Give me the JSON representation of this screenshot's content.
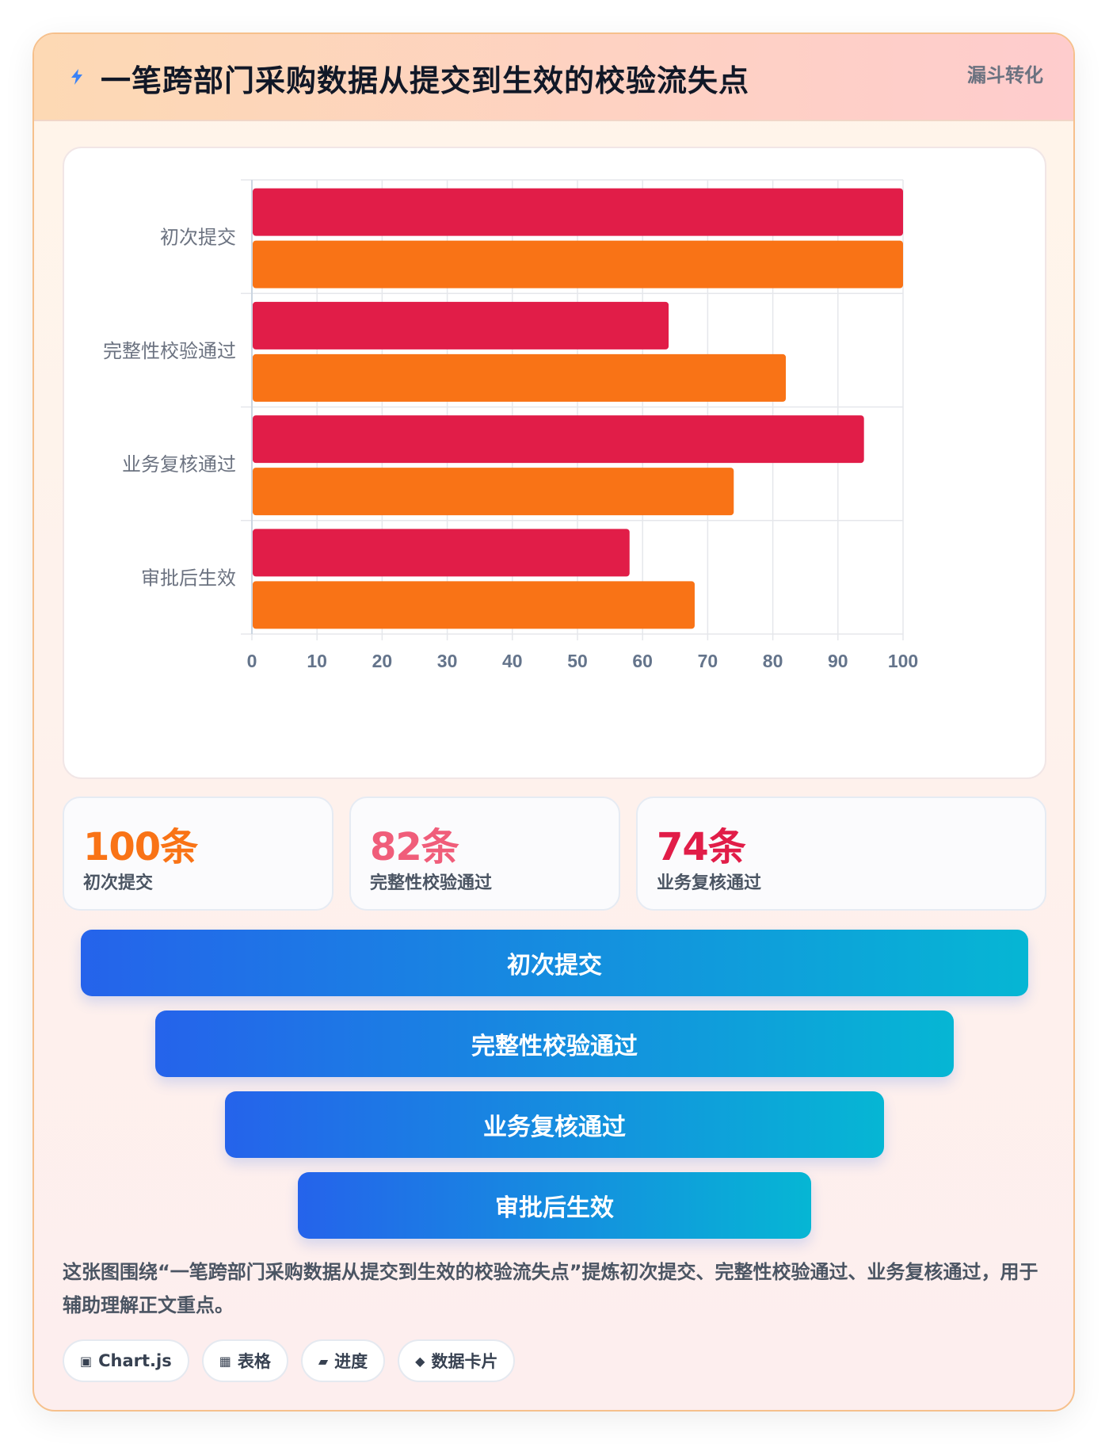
{
  "header": {
    "title": "一笔跨部门采购数据从提交到生效的校验流失点",
    "badge": "漏斗转化"
  },
  "chart_data": {
    "type": "bar",
    "orientation": "horizontal",
    "categories": [
      "初次提交",
      "完整性校验通过",
      "业务复核通过",
      "审批后生效"
    ],
    "series": [
      {
        "values": [
          100,
          64,
          94,
          58
        ],
        "color": "#e11d48"
      },
      {
        "values": [
          100,
          82,
          74,
          68
        ],
        "color": "#f97316"
      }
    ],
    "xlim": [
      0,
      100
    ],
    "xticks": [
      0,
      10,
      20,
      30,
      40,
      50,
      60,
      70,
      80,
      90,
      100
    ],
    "grid": true,
    "legend": "none"
  },
  "stats": [
    {
      "value": "100条",
      "label": "初次提交",
      "color": "#f97316"
    },
    {
      "value": "82条",
      "label": "完整性校验通过",
      "color": "#f05d7a"
    },
    {
      "value": "74条",
      "label": "业务复核通过",
      "color": "#e11d48"
    }
  ],
  "funnel": [
    {
      "label": "初次提交"
    },
    {
      "label": "完整性校验通过"
    },
    {
      "label": "业务复核通过"
    },
    {
      "label": "审批后生效"
    }
  ],
  "description": "这张图围绕“一笔跨部门采购数据从提交到生效的校验流失点”提炼初次提交、完整性校验通过、业务复核通过，用于辅助理解正文重点。",
  "tags": [
    {
      "icon": "▣",
      "label": "Chart.js"
    },
    {
      "icon": "▦",
      "label": "表格"
    },
    {
      "icon": "▰",
      "label": "进度"
    },
    {
      "icon": "◆",
      "label": "数据卡片"
    }
  ]
}
